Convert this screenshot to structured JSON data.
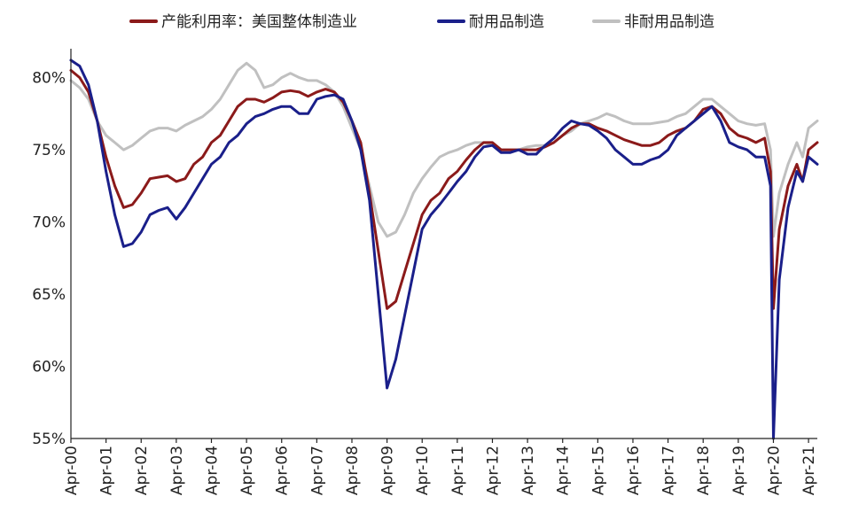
{
  "chart_data": {
    "type": "line",
    "title": "",
    "xlabel": "",
    "ylabel": "",
    "y_unit": "%",
    "ylim": [
      55,
      82
    ],
    "y_ticks": [
      55,
      60,
      65,
      70,
      75,
      80
    ],
    "y_tick_labels": [
      "55%",
      "60%",
      "65%",
      "70%",
      "75%",
      "80%"
    ],
    "x_ticks": [
      "Apr-00",
      "Apr-01",
      "Apr-02",
      "Apr-03",
      "Apr-04",
      "Apr-05",
      "Apr-06",
      "Apr-07",
      "Apr-08",
      "Apr-09",
      "Apr-10",
      "Apr-11",
      "Apr-12",
      "Apr-13",
      "Apr-14",
      "Apr-15",
      "Apr-16",
      "Apr-17",
      "Apr-18",
      "Apr-19",
      "Apr-20",
      "Apr-21"
    ],
    "xlim": [
      "2000-04",
      "2021-07"
    ],
    "legend_position": "top",
    "grid": false,
    "series": [
      {
        "name": "产能利用率：美国整体制造业",
        "color": "#8b1a1a",
        "points": [
          [
            "2000-04",
            80.5
          ],
          [
            "2000-07",
            80.0
          ],
          [
            "2000-10",
            79.0
          ],
          [
            "2001-01",
            77.0
          ],
          [
            "2001-04",
            74.5
          ],
          [
            "2001-07",
            72.5
          ],
          [
            "2001-10",
            71.0
          ],
          [
            "2002-01",
            71.2
          ],
          [
            "2002-04",
            72.0
          ],
          [
            "2002-07",
            73.0
          ],
          [
            "2002-10",
            73.1
          ],
          [
            "2003-01",
            73.2
          ],
          [
            "2003-04",
            72.8
          ],
          [
            "2003-07",
            73.0
          ],
          [
            "2003-10",
            74.0
          ],
          [
            "2004-01",
            74.5
          ],
          [
            "2004-04",
            75.5
          ],
          [
            "2004-07",
            76.0
          ],
          [
            "2004-10",
            77.0
          ],
          [
            "2005-01",
            78.0
          ],
          [
            "2005-04",
            78.5
          ],
          [
            "2005-07",
            78.5
          ],
          [
            "2005-10",
            78.3
          ],
          [
            "2006-01",
            78.6
          ],
          [
            "2006-04",
            79.0
          ],
          [
            "2006-07",
            79.1
          ],
          [
            "2006-10",
            79.0
          ],
          [
            "2007-01",
            78.7
          ],
          [
            "2007-04",
            79.0
          ],
          [
            "2007-07",
            79.2
          ],
          [
            "2007-10",
            79.0
          ],
          [
            "2008-01",
            78.3
          ],
          [
            "2008-04",
            77.0
          ],
          [
            "2008-07",
            75.5
          ],
          [
            "2008-10",
            72.0
          ],
          [
            "2009-01",
            68.0
          ],
          [
            "2009-04",
            64.0
          ],
          [
            "2009-07",
            64.5
          ],
          [
            "2009-10",
            66.5
          ],
          [
            "2010-01",
            68.5
          ],
          [
            "2010-04",
            70.5
          ],
          [
            "2010-07",
            71.5
          ],
          [
            "2010-10",
            72.0
          ],
          [
            "2011-01",
            73.0
          ],
          [
            "2011-04",
            73.5
          ],
          [
            "2011-07",
            74.3
          ],
          [
            "2011-10",
            75.0
          ],
          [
            "2012-01",
            75.5
          ],
          [
            "2012-04",
            75.5
          ],
          [
            "2012-07",
            75.0
          ],
          [
            "2012-10",
            75.0
          ],
          [
            "2013-01",
            75.0
          ],
          [
            "2013-04",
            75.0
          ],
          [
            "2013-07",
            75.0
          ],
          [
            "2013-10",
            75.2
          ],
          [
            "2014-01",
            75.5
          ],
          [
            "2014-04",
            76.0
          ],
          [
            "2014-07",
            76.5
          ],
          [
            "2014-10",
            76.8
          ],
          [
            "2015-01",
            76.8
          ],
          [
            "2015-04",
            76.5
          ],
          [
            "2015-07",
            76.3
          ],
          [
            "2015-10",
            76.0
          ],
          [
            "2016-01",
            75.7
          ],
          [
            "2016-04",
            75.5
          ],
          [
            "2016-07",
            75.3
          ],
          [
            "2016-10",
            75.3
          ],
          [
            "2017-01",
            75.5
          ],
          [
            "2017-04",
            76.0
          ],
          [
            "2017-07",
            76.3
          ],
          [
            "2017-10",
            76.5
          ],
          [
            "2018-01",
            77.0
          ],
          [
            "2018-04",
            77.8
          ],
          [
            "2018-07",
            78.0
          ],
          [
            "2018-10",
            77.5
          ],
          [
            "2019-01",
            76.5
          ],
          [
            "2019-04",
            76.0
          ],
          [
            "2019-07",
            75.8
          ],
          [
            "2019-10",
            75.5
          ],
          [
            "2020-01",
            75.8
          ],
          [
            "2020-03",
            73.5
          ],
          [
            "2020-04",
            64.0
          ],
          [
            "2020-06",
            69.5
          ],
          [
            "2020-09",
            72.5
          ],
          [
            "2020-12",
            74.0
          ],
          [
            "2021-02",
            72.8
          ],
          [
            "2021-04",
            75.0
          ],
          [
            "2021-07",
            75.5
          ]
        ]
      },
      {
        "name": "耐用品制造",
        "color": "#1a1f8a",
        "points": [
          [
            "2000-04",
            81.2
          ],
          [
            "2000-07",
            80.8
          ],
          [
            "2000-10",
            79.5
          ],
          [
            "2001-01",
            77.0
          ],
          [
            "2001-04",
            73.5
          ],
          [
            "2001-07",
            70.5
          ],
          [
            "2001-10",
            68.3
          ],
          [
            "2002-01",
            68.5
          ],
          [
            "2002-04",
            69.3
          ],
          [
            "2002-07",
            70.5
          ],
          [
            "2002-10",
            70.8
          ],
          [
            "2003-01",
            71.0
          ],
          [
            "2003-04",
            70.2
          ],
          [
            "2003-07",
            71.0
          ],
          [
            "2003-10",
            72.0
          ],
          [
            "2004-01",
            73.0
          ],
          [
            "2004-04",
            74.0
          ],
          [
            "2004-07",
            74.5
          ],
          [
            "2004-10",
            75.5
          ],
          [
            "2005-01",
            76.0
          ],
          [
            "2005-04",
            76.8
          ],
          [
            "2005-07",
            77.3
          ],
          [
            "2005-10",
            77.5
          ],
          [
            "2006-01",
            77.8
          ],
          [
            "2006-04",
            78.0
          ],
          [
            "2006-07",
            78.0
          ],
          [
            "2006-10",
            77.5
          ],
          [
            "2007-01",
            77.5
          ],
          [
            "2007-04",
            78.5
          ],
          [
            "2007-07",
            78.7
          ],
          [
            "2007-10",
            78.8
          ],
          [
            "2008-01",
            78.5
          ],
          [
            "2008-04",
            77.0
          ],
          [
            "2008-07",
            75.0
          ],
          [
            "2008-10",
            71.5
          ],
          [
            "2009-01",
            65.0
          ],
          [
            "2009-04",
            58.5
          ],
          [
            "2009-07",
            60.5
          ],
          [
            "2009-10",
            63.5
          ],
          [
            "2010-01",
            66.5
          ],
          [
            "2010-04",
            69.5
          ],
          [
            "2010-07",
            70.5
          ],
          [
            "2010-10",
            71.2
          ],
          [
            "2011-01",
            72.0
          ],
          [
            "2011-04",
            72.8
          ],
          [
            "2011-07",
            73.5
          ],
          [
            "2011-10",
            74.5
          ],
          [
            "2012-01",
            75.2
          ],
          [
            "2012-04",
            75.3
          ],
          [
            "2012-07",
            74.8
          ],
          [
            "2012-10",
            74.8
          ],
          [
            "2013-01",
            75.0
          ],
          [
            "2013-04",
            74.7
          ],
          [
            "2013-07",
            74.7
          ],
          [
            "2013-10",
            75.3
          ],
          [
            "2014-01",
            75.8
          ],
          [
            "2014-04",
            76.5
          ],
          [
            "2014-07",
            77.0
          ],
          [
            "2014-10",
            76.8
          ],
          [
            "2015-01",
            76.7
          ],
          [
            "2015-04",
            76.3
          ],
          [
            "2015-07",
            75.8
          ],
          [
            "2015-10",
            75.0
          ],
          [
            "2016-01",
            74.5
          ],
          [
            "2016-04",
            74.0
          ],
          [
            "2016-07",
            74.0
          ],
          [
            "2016-10",
            74.3
          ],
          [
            "2017-01",
            74.5
          ],
          [
            "2017-04",
            75.0
          ],
          [
            "2017-07",
            76.0
          ],
          [
            "2017-10",
            76.5
          ],
          [
            "2018-01",
            77.0
          ],
          [
            "2018-04",
            77.5
          ],
          [
            "2018-07",
            78.0
          ],
          [
            "2018-10",
            77.0
          ],
          [
            "2019-01",
            75.5
          ],
          [
            "2019-04",
            75.2
          ],
          [
            "2019-07",
            75.0
          ],
          [
            "2019-10",
            74.5
          ],
          [
            "2020-01",
            74.5
          ],
          [
            "2020-03",
            72.5
          ],
          [
            "2020-04",
            55.0
          ],
          [
            "2020-06",
            66.0
          ],
          [
            "2020-09",
            71.0
          ],
          [
            "2020-12",
            73.5
          ],
          [
            "2021-02",
            72.8
          ],
          [
            "2021-04",
            74.5
          ],
          [
            "2021-07",
            74.0
          ]
        ]
      },
      {
        "name": "非耐用品制造",
        "color": "#c0c0c0",
        "points": [
          [
            "2000-04",
            79.8
          ],
          [
            "2000-07",
            79.3
          ],
          [
            "2000-10",
            78.5
          ],
          [
            "2001-01",
            77.0
          ],
          [
            "2001-04",
            76.0
          ],
          [
            "2001-07",
            75.5
          ],
          [
            "2001-10",
            75.0
          ],
          [
            "2002-01",
            75.3
          ],
          [
            "2002-04",
            75.8
          ],
          [
            "2002-07",
            76.3
          ],
          [
            "2002-10",
            76.5
          ],
          [
            "2003-01",
            76.5
          ],
          [
            "2003-04",
            76.3
          ],
          [
            "2003-07",
            76.7
          ],
          [
            "2003-10",
            77.0
          ],
          [
            "2004-01",
            77.3
          ],
          [
            "2004-04",
            77.8
          ],
          [
            "2004-07",
            78.5
          ],
          [
            "2004-10",
            79.5
          ],
          [
            "2005-01",
            80.5
          ],
          [
            "2005-04",
            81.0
          ],
          [
            "2005-07",
            80.5
          ],
          [
            "2005-10",
            79.3
          ],
          [
            "2006-01",
            79.5
          ],
          [
            "2006-04",
            80.0
          ],
          [
            "2006-07",
            80.3
          ],
          [
            "2006-10",
            80.0
          ],
          [
            "2007-01",
            79.8
          ],
          [
            "2007-04",
            79.8
          ],
          [
            "2007-07",
            79.5
          ],
          [
            "2007-10",
            79.0
          ],
          [
            "2008-01",
            78.0
          ],
          [
            "2008-04",
            76.5
          ],
          [
            "2008-07",
            75.0
          ],
          [
            "2008-10",
            72.5
          ],
          [
            "2009-01",
            70.0
          ],
          [
            "2009-04",
            69.0
          ],
          [
            "2009-07",
            69.3
          ],
          [
            "2009-10",
            70.5
          ],
          [
            "2010-01",
            72.0
          ],
          [
            "2010-04",
            73.0
          ],
          [
            "2010-07",
            73.8
          ],
          [
            "2010-10",
            74.5
          ],
          [
            "2011-01",
            74.8
          ],
          [
            "2011-04",
            75.0
          ],
          [
            "2011-07",
            75.3
          ],
          [
            "2011-10",
            75.5
          ],
          [
            "2012-01",
            75.5
          ],
          [
            "2012-04",
            75.3
          ],
          [
            "2012-07",
            75.0
          ],
          [
            "2012-10",
            75.0
          ],
          [
            "2013-01",
            75.0
          ],
          [
            "2013-04",
            75.2
          ],
          [
            "2013-07",
            75.3
          ],
          [
            "2013-10",
            75.3
          ],
          [
            "2014-01",
            75.5
          ],
          [
            "2014-04",
            76.0
          ],
          [
            "2014-07",
            76.3
          ],
          [
            "2014-10",
            76.8
          ],
          [
            "2015-01",
            77.0
          ],
          [
            "2015-04",
            77.2
          ],
          [
            "2015-07",
            77.5
          ],
          [
            "2015-10",
            77.3
          ],
          [
            "2016-01",
            77.0
          ],
          [
            "2016-04",
            76.8
          ],
          [
            "2016-07",
            76.8
          ],
          [
            "2016-10",
            76.8
          ],
          [
            "2017-01",
            76.9
          ],
          [
            "2017-04",
            77.0
          ],
          [
            "2017-07",
            77.3
          ],
          [
            "2017-10",
            77.5
          ],
          [
            "2018-01",
            78.0
          ],
          [
            "2018-04",
            78.5
          ],
          [
            "2018-07",
            78.5
          ],
          [
            "2018-10",
            78.0
          ],
          [
            "2019-01",
            77.5
          ],
          [
            "2019-04",
            77.0
          ],
          [
            "2019-07",
            76.8
          ],
          [
            "2019-10",
            76.7
          ],
          [
            "2020-01",
            76.8
          ],
          [
            "2020-03",
            75.0
          ],
          [
            "2020-04",
            69.0
          ],
          [
            "2020-06",
            72.0
          ],
          [
            "2020-09",
            74.0
          ],
          [
            "2020-12",
            75.5
          ],
          [
            "2021-02",
            74.5
          ],
          [
            "2021-04",
            76.5
          ],
          [
            "2021-07",
            77.0
          ]
        ]
      }
    ]
  }
}
